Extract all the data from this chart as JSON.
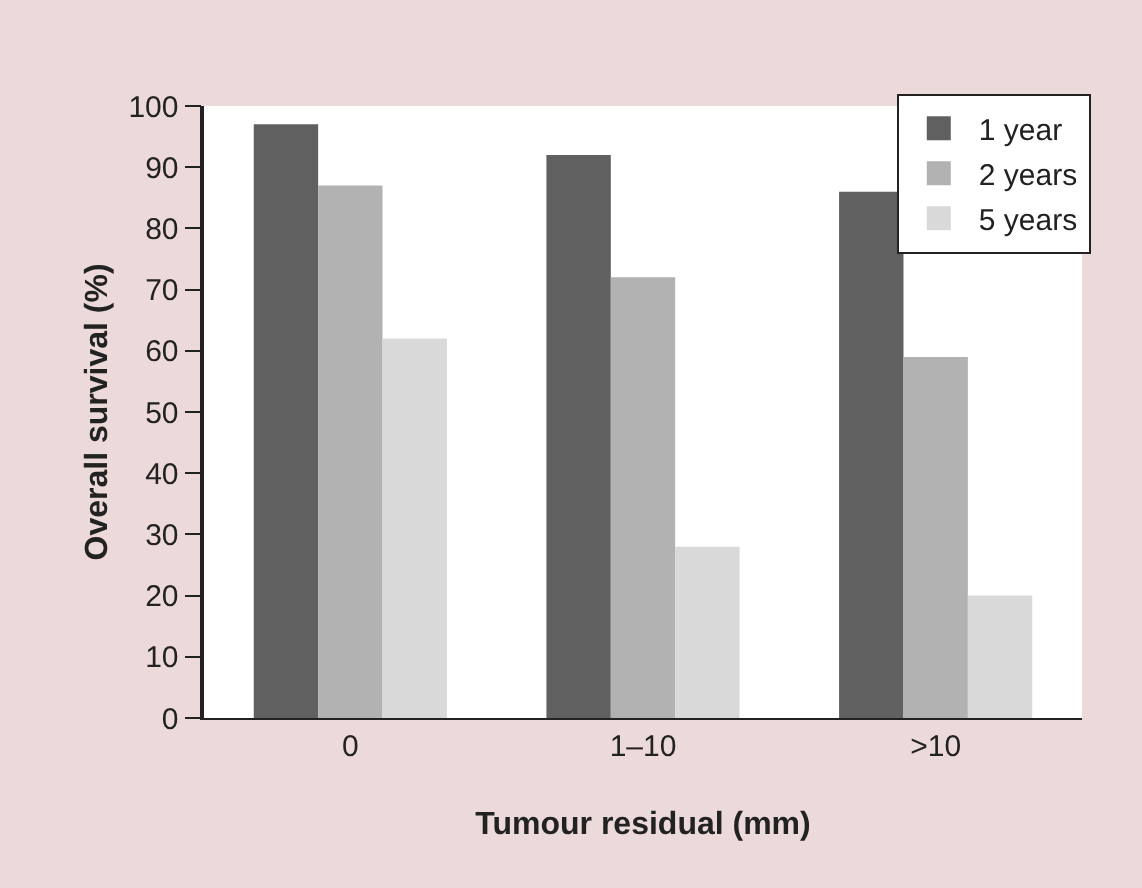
{
  "chart_data": {
    "type": "bar",
    "xlabel": "Tumour residual (mm)",
    "ylabel": "Overall survival (%)",
    "categories": [
      "0",
      "1–10",
      ">10"
    ],
    "series": [
      {
        "name": "1 year",
        "color": "#606060",
        "values": [
          97,
          92,
          86
        ]
      },
      {
        "name": "2 years",
        "color": "#b2b2b2",
        "values": [
          87,
          72,
          59
        ]
      },
      {
        "name": "5 years",
        "color": "#d9d9d9",
        "values": [
          62,
          28,
          20
        ]
      }
    ],
    "ylim": [
      0,
      100
    ],
    "yticks": [
      0,
      10,
      20,
      30,
      40,
      50,
      60,
      70,
      80,
      90,
      100
    ],
    "grid": false,
    "legend": "top right"
  }
}
